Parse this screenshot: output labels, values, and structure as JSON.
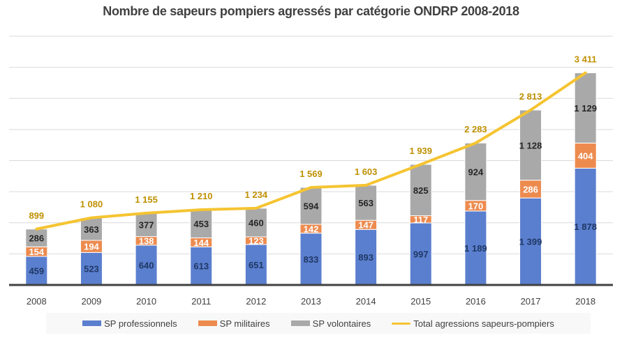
{
  "chart_data": {
    "type": "bar",
    "subtype": "stacked-bar-with-line",
    "title": "Nombre de sapeurs pompiers agressés par catégorie ONDRP 2008-2018",
    "xlabel": "",
    "ylabel": "",
    "ylim": [
      0,
      4000
    ],
    "grid": true,
    "grid_step": 500,
    "y_axis_labels_visible": false,
    "legend_position": "bottom",
    "categories": [
      "2008",
      "2009",
      "2010",
      "2011",
      "2012",
      "2013",
      "2014",
      "2015",
      "2016",
      "2017",
      "2018"
    ],
    "series": [
      {
        "name": "SP professionnels",
        "kind": "bar",
        "color": "#5b7fcf",
        "label_color": "#1f3864",
        "values": [
          459,
          523,
          640,
          613,
          651,
          833,
          893,
          997,
          1189,
          1399,
          1878
        ],
        "labels": [
          "459",
          "523",
          "640",
          "613",
          "651",
          "833",
          "893",
          "997",
          "1 189",
          "1 399",
          "1 878"
        ]
      },
      {
        "name": "SP militaires",
        "kind": "bar",
        "color": "#ed8b4f",
        "label_color": "#ffffff",
        "values": [
          154,
          194,
          138,
          144,
          123,
          142,
          147,
          117,
          170,
          286,
          404
        ],
        "labels": [
          "154",
          "194",
          "138",
          "144",
          "123",
          "142",
          "147",
          "117",
          "170",
          "286",
          "404"
        ]
      },
      {
        "name": "SP volontaires",
        "kind": "bar",
        "color": "#a9a9a9",
        "label_color": "#262626",
        "values": [
          286,
          363,
          377,
          453,
          460,
          594,
          563,
          825,
          924,
          1128,
          1129
        ],
        "labels": [
          "286",
          "363",
          "377",
          "453",
          "460",
          "594",
          "563",
          "825",
          "924",
          "1 128",
          "1 129"
        ]
      },
      {
        "name": "Total agressions sapeurs-pompiers",
        "kind": "line",
        "color": "#f5c431",
        "label_color": "#bf9000",
        "values": [
          899,
          1080,
          1155,
          1210,
          1234,
          1569,
          1603,
          1939,
          2283,
          2813,
          3411
        ],
        "labels": [
          "899",
          "1 080",
          "1 155",
          "1 210",
          "1 234",
          "1 569",
          "1 603",
          "1 939",
          "2 283",
          "2 813",
          "3 411"
        ]
      }
    ]
  }
}
